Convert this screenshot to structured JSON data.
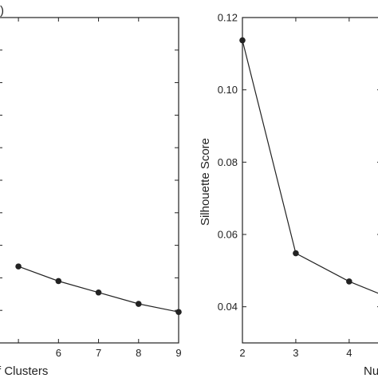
{
  "panel_letter_left": ")",
  "chart_data": [
    {
      "type": "line",
      "title": "",
      "xlabel": "f Clusters",
      "ylabel": "",
      "xlim": [
        4.5,
        9
      ],
      "ylim": [
        0,
        1
      ],
      "x_ticks": [
        5,
        6,
        7,
        8,
        9
      ],
      "x_tick_labels": [
        "",
        "6",
        "7",
        "8",
        "9"
      ],
      "y_ticks": [
        0.1,
        0.2,
        0.3,
        0.4,
        0.5,
        0.6,
        0.7,
        0.8,
        0.9
      ],
      "grid": false,
      "legend": "none",
      "series": [
        {
          "x": [
            5,
            6,
            7,
            8,
            9
          ],
          "y": [
            0.235,
            0.19,
            0.155,
            0.12,
            0.095
          ]
        }
      ],
      "color": "#222222"
    },
    {
      "type": "line",
      "title": "",
      "xlabel": "Nu",
      "ylabel": "Silhouette Score",
      "xlim": [
        2,
        4.6
      ],
      "ylim": [
        0.03,
        0.12
      ],
      "x_ticks": [
        2,
        3,
        4
      ],
      "x_tick_labels": [
        "2",
        "3",
        "4"
      ],
      "y_ticks": [
        0.04,
        0.06,
        0.08,
        0.1,
        0.12
      ],
      "y_tick_labels": [
        "0.04",
        "0.06",
        "0.08",
        "0.10",
        "0.12"
      ],
      "grid": false,
      "legend": "none",
      "series": [
        {
          "x": [
            2,
            3,
            4,
            5
          ],
          "y": [
            0.1137,
            0.0548,
            0.047,
            0.041
          ]
        }
      ],
      "color": "#222222"
    }
  ]
}
